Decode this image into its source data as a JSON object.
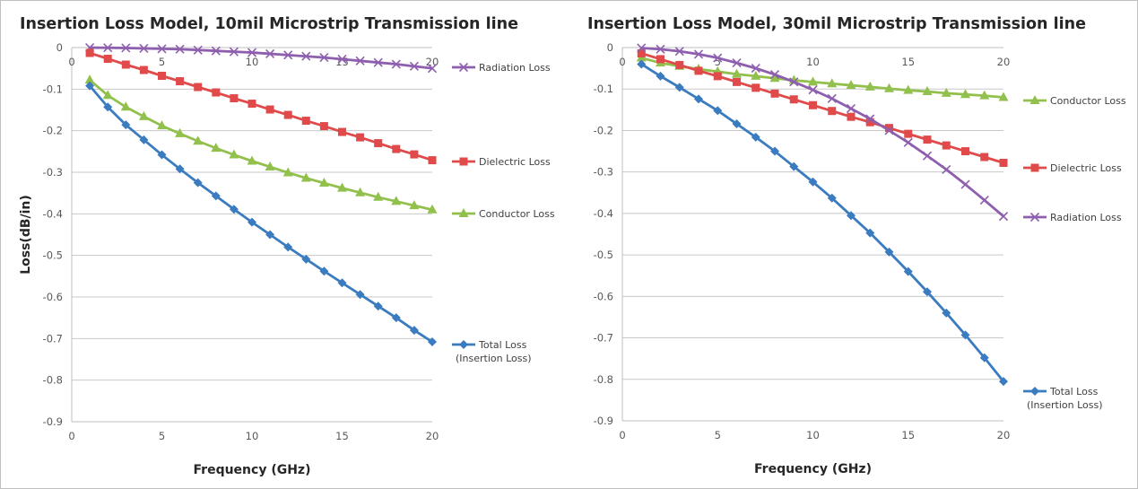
{
  "chart_data": [
    {
      "type": "line",
      "title": "Insertion Loss Model, 10mil Microstrip Transmission line",
      "xlabel": "Frequency (GHz)",
      "ylabel": "Loss(dB/in)",
      "xlim": [
        0,
        20
      ],
      "ylim": [
        -0.9,
        0
      ],
      "xticks": [
        "0",
        "5",
        "10",
        "15",
        "20"
      ],
      "yticks": [
        "0",
        "-0.1",
        "-0.2",
        "-0.3",
        "-0.4",
        "-0.5",
        "-0.6",
        "-0.7",
        "-0.8",
        "-0.9"
      ],
      "grid": "horizontal",
      "secondary_x_axis_at_zero": true,
      "x": [
        1,
        2,
        3,
        4,
        5,
        6,
        7,
        8,
        9,
        10,
        11,
        12,
        13,
        14,
        15,
        16,
        17,
        18,
        19,
        20
      ],
      "series": [
        {
          "name": "Radiation Loss",
          "color": "#8e5fae",
          "marker": "x",
          "values": [
            -0.0001,
            -0.0005,
            -0.001,
            -0.002,
            -0.003,
            -0.004,
            -0.006,
            -0.008,
            -0.01,
            -0.012,
            -0.015,
            -0.018,
            -0.021,
            -0.024,
            -0.028,
            -0.032,
            -0.036,
            -0.04,
            -0.045,
            -0.05
          ]
        },
        {
          "name": "Dielectric Loss",
          "color": "#e04a4a",
          "marker": "square",
          "values": [
            -0.013,
            -0.027,
            -0.041,
            -0.054,
            -0.068,
            -0.081,
            -0.095,
            -0.108,
            -0.122,
            -0.135,
            -0.149,
            -0.162,
            -0.176,
            -0.189,
            -0.203,
            -0.216,
            -0.23,
            -0.244,
            -0.257,
            -0.271
          ]
        },
        {
          "name": "Conductor Loss",
          "color": "#92c04d",
          "marker": "triangle",
          "values": [
            -0.078,
            -0.115,
            -0.143,
            -0.166,
            -0.188,
            -0.207,
            -0.225,
            -0.242,
            -0.258,
            -0.273,
            -0.287,
            -0.301,
            -0.314,
            -0.326,
            -0.338,
            -0.349,
            -0.36,
            -0.37,
            -0.38,
            -0.39
          ]
        },
        {
          "name": "Total Loss\n(Insertion Loss)",
          "color": "#3a7cbf",
          "marker": "diamond",
          "values": [
            -0.092,
            -0.143,
            -0.186,
            -0.222,
            -0.258,
            -0.292,
            -0.325,
            -0.357,
            -0.389,
            -0.42,
            -0.45,
            -0.48,
            -0.509,
            -0.538,
            -0.566,
            -0.594,
            -0.622,
            -0.65,
            -0.68,
            -0.708
          ]
        }
      ],
      "legend": "right, next to each series end"
    },
    {
      "type": "line",
      "title": "Insertion Loss Model, 30mil Microstrip Transmission line",
      "xlabel": "Frequency (GHz)",
      "ylabel": "",
      "xlim": [
        0,
        20
      ],
      "ylim": [
        -0.9,
        0
      ],
      "xticks": [
        "0",
        "5",
        "10",
        "15",
        "20"
      ],
      "yticks": [
        "0",
        "-0.1",
        "-0.2",
        "-0.3",
        "-0.4",
        "-0.5",
        "-0.6",
        "-0.7",
        "-0.8",
        "-0.9"
      ],
      "grid": "horizontal",
      "secondary_x_axis_at_zero": true,
      "x": [
        1,
        2,
        3,
        4,
        5,
        6,
        7,
        8,
        9,
        10,
        11,
        12,
        13,
        14,
        15,
        16,
        17,
        18,
        19,
        20
      ],
      "series": [
        {
          "name": "Conductor Loss",
          "color": "#92c04d",
          "marker": "triangle",
          "values": [
            -0.025,
            -0.037,
            -0.045,
            -0.052,
            -0.058,
            -0.064,
            -0.069,
            -0.074,
            -0.079,
            -0.083,
            -0.087,
            -0.091,
            -0.095,
            -0.099,
            -0.103,
            -0.106,
            -0.11,
            -0.113,
            -0.116,
            -0.12
          ]
        },
        {
          "name": "Dielectric Loss",
          "color": "#e04a4a",
          "marker": "square",
          "values": [
            -0.014,
            -0.028,
            -0.042,
            -0.056,
            -0.069,
            -0.083,
            -0.097,
            -0.111,
            -0.125,
            -0.139,
            -0.153,
            -0.167,
            -0.18,
            -0.194,
            -0.208,
            -0.222,
            -0.236,
            -0.25,
            -0.264,
            -0.278
          ]
        },
        {
          "name": "Radiation Loss",
          "color": "#8e5fae",
          "marker": "x",
          "values": [
            -0.001,
            -0.004,
            -0.009,
            -0.016,
            -0.025,
            -0.037,
            -0.05,
            -0.065,
            -0.083,
            -0.102,
            -0.123,
            -0.147,
            -0.172,
            -0.2,
            -0.229,
            -0.261,
            -0.294,
            -0.33,
            -0.368,
            -0.407
          ]
        },
        {
          "name": "Total Loss\n(Insertion Loss)",
          "color": "#3a7cbf",
          "marker": "diamond",
          "values": [
            -0.04,
            -0.069,
            -0.096,
            -0.124,
            -0.152,
            -0.184,
            -0.216,
            -0.25,
            -0.287,
            -0.324,
            -0.363,
            -0.405,
            -0.447,
            -0.493,
            -0.54,
            -0.589,
            -0.64,
            -0.693,
            -0.748,
            -0.805
          ]
        }
      ],
      "legend": "right, next to each series end"
    }
  ]
}
